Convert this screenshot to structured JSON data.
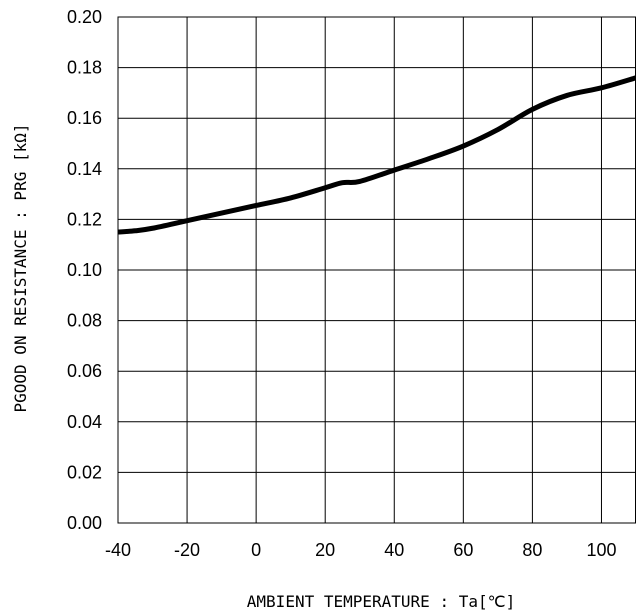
{
  "chart_data": {
    "type": "line",
    "title": "",
    "xlabel": "AMBIENT TEMPERATURE : Ta[℃]",
    "ylabel": "PGOOD ON RESISTANCE : PRG [kΩ]",
    "xlim": [
      -40,
      110
    ],
    "ylim": [
      0.0,
      0.2
    ],
    "x_ticks": [
      -40,
      -20,
      0,
      20,
      40,
      60,
      80,
      100
    ],
    "x_tick_labels": [
      "-40",
      "-20",
      "0",
      "20",
      "40",
      "60",
      "80",
      "100"
    ],
    "y_ticks": [
      0.0,
      0.02,
      0.04,
      0.06,
      0.08,
      0.1,
      0.12,
      0.14,
      0.16,
      0.18,
      0.2
    ],
    "y_tick_labels": [
      "0.00",
      "0.02",
      "0.04",
      "0.06",
      "0.08",
      "0.10",
      "0.12",
      "0.14",
      "0.16",
      "0.18",
      "0.20"
    ],
    "grid": true,
    "legend": "none",
    "line_color": "#000000",
    "series": [
      {
        "x": [
          -40,
          -35,
          -30,
          -20,
          -10,
          0,
          10,
          20,
          25,
          30,
          40,
          50,
          60,
          70,
          80,
          90,
          100,
          110
        ],
        "y": [
          0.115,
          0.1155,
          0.1165,
          0.1195,
          0.1225,
          0.1255,
          0.1285,
          0.1325,
          0.1345,
          0.135,
          0.1395,
          0.144,
          0.149,
          0.1555,
          0.1635,
          0.169,
          0.172,
          0.176
        ]
      }
    ]
  }
}
